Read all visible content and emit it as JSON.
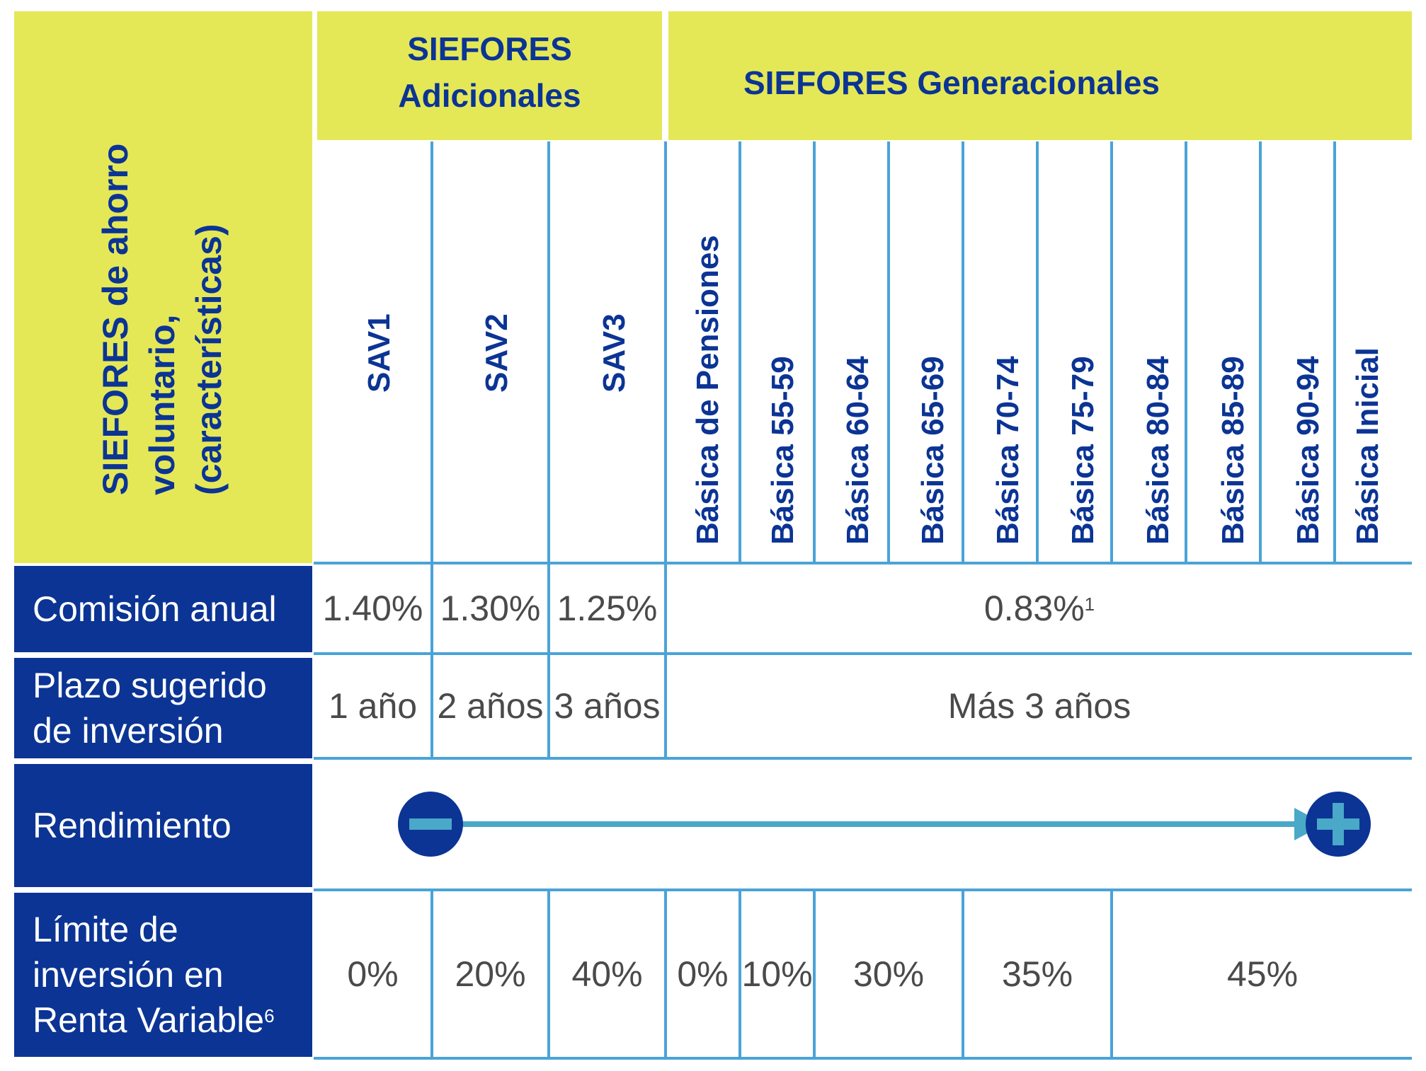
{
  "header": {
    "corner_label_line1": "SIEFORES de ahorro",
    "corner_label_line2": "voluntario,",
    "corner_label_line3": "(características)",
    "group_adicionales_line1": "SIEFORES",
    "group_adicionales_line2": "Adicionales",
    "group_generacionales": "SIEFORES Generacionales"
  },
  "columns": [
    "SAV1",
    "SAV2",
    "SAV3",
    "Básica de Pensiones",
    "Básica 55-59",
    "Básica 60-64",
    "Básica 65-69",
    "Básica 70-74",
    "Básica 75-79",
    "Básica 80-84",
    "Básica 85-89",
    "Básica 90-94",
    "Básica Inicial"
  ],
  "rows": {
    "comision": {
      "label": "Comisión anual",
      "sav1": "1.40%",
      "sav2": "1.30%",
      "sav3": "1.25%",
      "generacionales": "0.83%",
      "generacionales_sup": "1"
    },
    "plazo": {
      "label_line1": "Plazo sugerido",
      "label_line2": "de inversión",
      "sav1": "1 año",
      "sav2": "2 años",
      "sav3": "3 años",
      "generacionales": "Más 3 años"
    },
    "rendimiento": {
      "label": "Rendimiento",
      "low_icon": "minus-circle-icon",
      "high_icon": "plus-circle-icon"
    },
    "limite": {
      "label_line1": "Límite de",
      "label_line2": "inversión en",
      "label_line3": "Renta Variable",
      "label_sup": "6",
      "sav1": "0%",
      "sav2": "20%",
      "sav3": "40%",
      "basica_pensiones": "0%",
      "basica_55_59": "10%",
      "basica_60_69": "30%",
      "basica_70_79": "35%",
      "basica_80_inicial": "45%"
    }
  },
  "colors": {
    "header_yellow": "#e4e857",
    "row_navy": "#0b3494",
    "grid_blue": "#4aa3d8",
    "arrow_teal": "#4aa8c8"
  }
}
